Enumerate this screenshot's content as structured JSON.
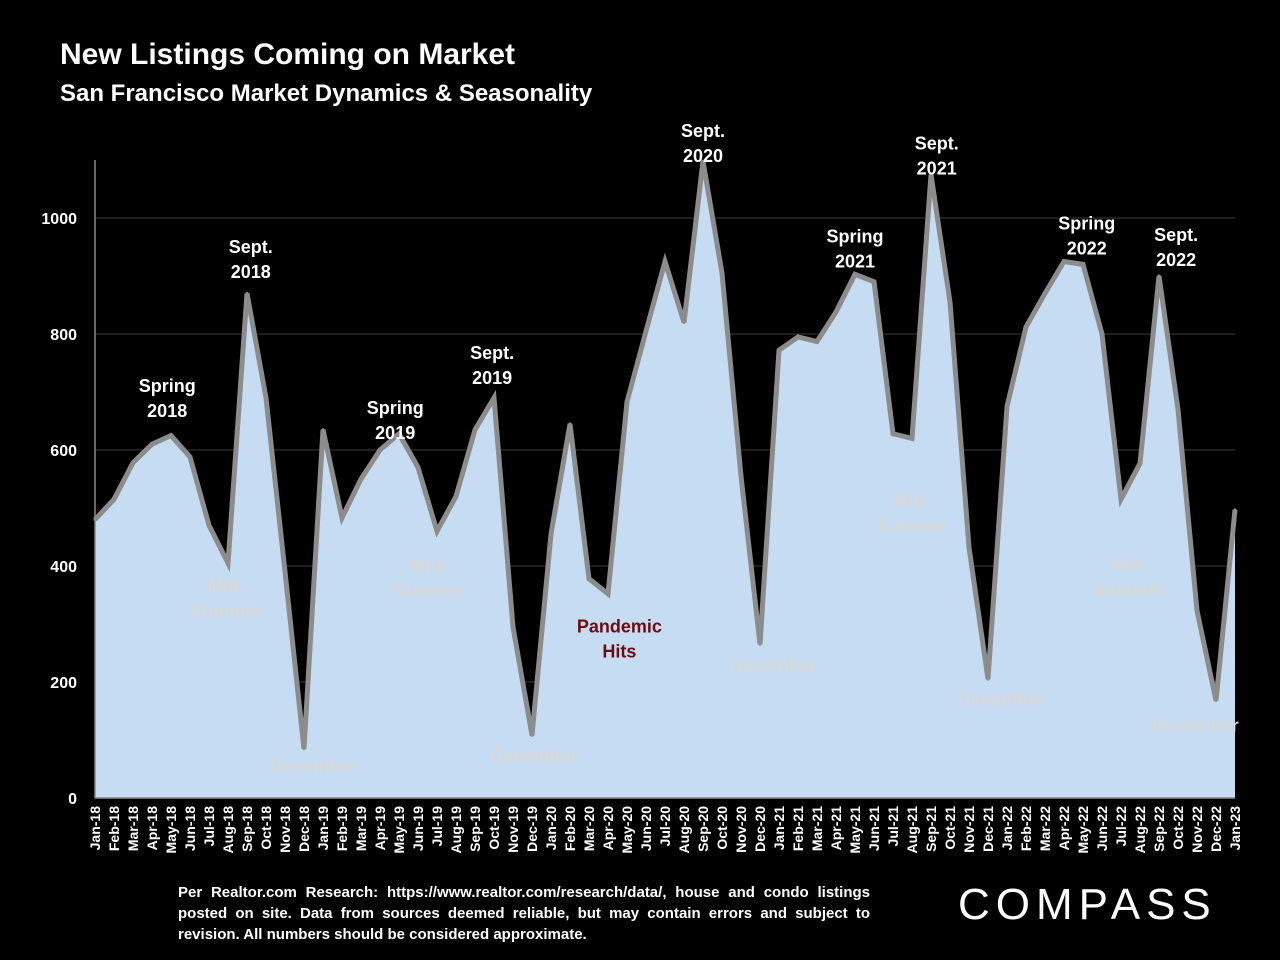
{
  "header": {
    "title": "New Listings Coming on Market",
    "subtitle": "San Francisco Market Dynamics & Seasonality"
  },
  "chart_data": {
    "type": "area",
    "title": "New Listings Coming on Market",
    "subtitle": "San Francisco Market Dynamics & Seasonality",
    "xlabel": "",
    "ylabel": "",
    "ylim": [
      0,
      1100
    ],
    "yticks": [
      0,
      200,
      400,
      600,
      800,
      1000
    ],
    "grid": true,
    "colors": {
      "fill": "#c5dcf2",
      "line": "#8c8c8c",
      "grid": "#3a3a3a",
      "axis": "#888888"
    },
    "categories": [
      "Jan-18",
      "Feb-18",
      "Mar-18",
      "Apr-18",
      "May-18",
      "Jun-18",
      "Jul-18",
      "Aug-18",
      "Sep-18",
      "Oct-18",
      "Nov-18",
      "Dec-18",
      "Jan-19",
      "Feb-19",
      "Mar-19",
      "Apr-19",
      "May-19",
      "Jun-19",
      "Jul-19",
      "Aug-19",
      "Sep-19",
      "Oct-19",
      "Nov-19",
      "Dec-19",
      "Jan-20",
      "Feb-20",
      "Mar-20",
      "Apr-20",
      "May-20",
      "Jun-20",
      "Jul-20",
      "Aug-20",
      "Sep-20",
      "Oct-20",
      "Nov-20",
      "Dec-20",
      "Jan-21",
      "Feb-21",
      "Mar-21",
      "Apr-21",
      "May-21",
      "Jun-21",
      "Jul-21",
      "Aug-21",
      "Sep-21",
      "Oct-21",
      "Nov-21",
      "Dec-21",
      "Jan-22",
      "Feb-22",
      "Mar-22",
      "Apr-22",
      "May-22",
      "Jun-22",
      "Jul-22",
      "Aug-22",
      "Sep-22",
      "Oct-22",
      "Nov-22",
      "Dec-22",
      "Jan-23"
    ],
    "series": [
      {
        "name": "New Listings",
        "values": [
          480,
          515,
          578,
          610,
          625,
          588,
          470,
          405,
          870,
          690,
          390,
          85,
          635,
          483,
          550,
          600,
          628,
          570,
          460,
          520,
          635,
          690,
          295,
          108,
          455,
          645,
          378,
          352,
          683,
          805,
          925,
          820,
          1098,
          905,
          555,
          265,
          772,
          795,
          787,
          838,
          903,
          890,
          628,
          620,
          1075,
          855,
          432,
          205,
          675,
          812,
          870,
          925,
          920,
          800,
          515,
          577,
          900,
          670,
          323,
          168,
          497
        ]
      }
    ],
    "annotations": [
      {
        "text": [
          "Spring",
          "2018"
        ],
        "x": 3.8,
        "y": 700,
        "color": "#ffffff"
      },
      {
        "text": [
          "Sept.",
          "2018"
        ],
        "x": 8.2,
        "y": 940,
        "color": "#ffffff"
      },
      {
        "text": [
          "Mid-",
          "Summer"
        ],
        "x": 6.9,
        "y": 355,
        "color": "#d9d9d9"
      },
      {
        "text": [
          "December"
        ],
        "x": 11.5,
        "y": 45,
        "color": "#d9d9d9"
      },
      {
        "text": [
          "Spring",
          "2019"
        ],
        "x": 15.8,
        "y": 662,
        "color": "#ffffff"
      },
      {
        "text": [
          "Mid-",
          "Summer"
        ],
        "x": 17.6,
        "y": 390,
        "color": "#d9d9d9"
      },
      {
        "text": [
          "Sept.",
          "2019"
        ],
        "x": 20.9,
        "y": 757,
        "color": "#ffffff"
      },
      {
        "text": [
          "December"
        ],
        "x": 23.1,
        "y": 62,
        "color": "#d9d9d9"
      },
      {
        "text": [
          "Pandemic",
          "Hits"
        ],
        "x": 27.6,
        "y": 285,
        "color": "#6b0d0d"
      },
      {
        "text": [
          "Sept.",
          "2020"
        ],
        "x": 32.0,
        "y": 1140,
        "color": "#ffffff"
      },
      {
        "text": [
          "December"
        ],
        "x": 35.7,
        "y": 218,
        "color": "#d9d9d9"
      },
      {
        "text": [
          "Spring",
          "2021"
        ],
        "x": 40.0,
        "y": 958,
        "color": "#ffffff"
      },
      {
        "text": [
          "Mid-",
          "Summer"
        ],
        "x": 43.0,
        "y": 503,
        "color": "#d9d9d9"
      },
      {
        "text": [
          "Sept.",
          "2021"
        ],
        "x": 44.3,
        "y": 1118,
        "color": "#ffffff"
      },
      {
        "text": [
          "December"
        ],
        "x": 47.7,
        "y": 160,
        "color": "#d9d9d9"
      },
      {
        "text": [
          "Spring",
          "2022"
        ],
        "x": 52.2,
        "y": 980,
        "color": "#ffffff"
      },
      {
        "text": [
          "Mid-",
          "Summer"
        ],
        "x": 54.4,
        "y": 392,
        "color": "#d9d9d9"
      },
      {
        "text": [
          "Sept.",
          "2022"
        ],
        "x": 56.9,
        "y": 960,
        "color": "#ffffff"
      },
      {
        "text": [
          "December"
        ],
        "x": 57.9,
        "y": 115,
        "color": "#d9d9d9"
      }
    ]
  },
  "footer": {
    "note": "Per Realtor.com Research: https://www.realtor.com/research/data/, house and condo listings posted on site. Data from sources deemed reliable, but may contain errors and subject to revision. All numbers should be considered approximate.",
    "logo": "COMPASS"
  }
}
